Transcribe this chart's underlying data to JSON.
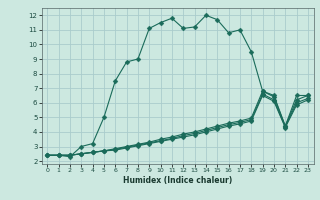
{
  "xlabel": "Humidex (Indice chaleur)",
  "background_color": "#cce8e0",
  "grid_color": "#aacccc",
  "line_color": "#1a6b5a",
  "xlim": [
    -0.5,
    23.5
  ],
  "ylim": [
    1.8,
    12.5
  ],
  "xticks": [
    0,
    1,
    2,
    3,
    4,
    5,
    6,
    7,
    8,
    9,
    10,
    11,
    12,
    13,
    14,
    15,
    16,
    17,
    18,
    19,
    20,
    21,
    22,
    23
  ],
  "yticks": [
    2,
    3,
    4,
    5,
    6,
    7,
    8,
    9,
    10,
    11,
    12
  ],
  "main_x": [
    0,
    1,
    2,
    3,
    4,
    5,
    6,
    7,
    8,
    9,
    10,
    11,
    12,
    13,
    14,
    15,
    16,
    17,
    18,
    19,
    20,
    21,
    22,
    23
  ],
  "main_y": [
    2.4,
    2.4,
    2.3,
    3.0,
    3.2,
    5.0,
    7.5,
    8.8,
    9.0,
    11.1,
    11.5,
    11.8,
    11.1,
    11.2,
    12.0,
    11.7,
    10.8,
    11.0,
    9.5,
    6.8,
    6.5,
    4.4,
    6.5,
    6.5
  ],
  "line2_x": [
    0,
    1,
    2,
    3,
    4,
    5,
    6,
    7,
    8,
    9,
    10,
    11,
    12,
    13,
    14,
    15,
    16,
    17,
    18,
    19,
    20,
    21,
    22,
    23
  ],
  "line2_y": [
    2.4,
    2.4,
    2.4,
    2.5,
    2.6,
    2.7,
    2.85,
    3.0,
    3.15,
    3.3,
    3.5,
    3.65,
    3.85,
    4.0,
    4.2,
    4.4,
    4.6,
    4.75,
    4.95,
    6.8,
    6.4,
    4.4,
    6.2,
    6.5
  ],
  "line3_x": [
    0,
    1,
    2,
    3,
    4,
    5,
    6,
    7,
    8,
    9,
    10,
    11,
    12,
    13,
    14,
    15,
    16,
    17,
    18,
    19,
    20,
    21,
    22,
    23
  ],
  "line3_y": [
    2.4,
    2.4,
    2.4,
    2.5,
    2.6,
    2.7,
    2.8,
    2.95,
    3.1,
    3.25,
    3.4,
    3.55,
    3.75,
    3.9,
    4.1,
    4.3,
    4.5,
    4.65,
    4.85,
    6.6,
    6.2,
    4.35,
    6.0,
    6.3
  ],
  "line4_x": [
    0,
    1,
    2,
    3,
    4,
    5,
    6,
    7,
    8,
    9,
    10,
    11,
    12,
    13,
    14,
    15,
    16,
    17,
    18,
    19,
    20,
    21,
    22,
    23
  ],
  "line4_y": [
    2.4,
    2.4,
    2.4,
    2.5,
    2.6,
    2.7,
    2.75,
    2.9,
    3.05,
    3.2,
    3.35,
    3.5,
    3.65,
    3.8,
    4.0,
    4.2,
    4.4,
    4.55,
    4.75,
    6.5,
    6.1,
    4.3,
    5.85,
    6.2
  ]
}
